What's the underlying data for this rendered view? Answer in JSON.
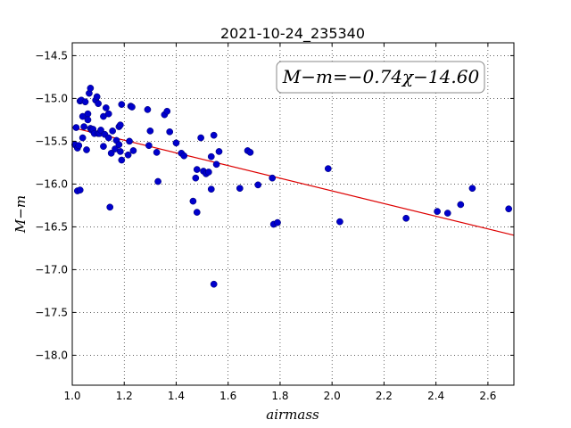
{
  "chart_data": {
    "type": "scatter",
    "title": "2021-10-24_235340",
    "xlabel": "airmass",
    "ylabel": "M−m",
    "xlim": [
      1.0,
      2.7
    ],
    "ylim": [
      -18.35,
      -14.35
    ],
    "y_inverted": true,
    "grid": true,
    "grid_style": "dotted",
    "x_ticks": [
      1.0,
      1.2,
      1.4,
      1.6,
      1.8,
      2.0,
      2.2,
      2.4,
      2.6
    ],
    "x_tick_labels": [
      "1.0",
      "1.2",
      "1.4",
      "1.6",
      "1.8",
      "2.0",
      "2.2",
      "2.4",
      "2.6"
    ],
    "y_ticks": [
      -14.5,
      -15.0,
      -15.5,
      -16.0,
      -16.5,
      -17.0,
      -17.5,
      -18.0
    ],
    "y_tick_labels": [
      "−14.5",
      "−15.0",
      "−15.5",
      "−16.0",
      "−16.5",
      "−17.0",
      "−17.5",
      "−18.0"
    ],
    "annotation": "M−m=−0.74χ−14.60",
    "annotation_position": "top-right",
    "colors": {
      "points": "#0000cc",
      "fit_line": "#dd0000"
    },
    "fit": {
      "slope": -0.74,
      "intercept": -14.6,
      "x_range": [
        1.0,
        2.7
      ]
    },
    "series": [
      {
        "points": [
          [
            1.01,
            -15.54
          ],
          [
            1.015,
            -15.34
          ],
          [
            1.02,
            -15.58
          ],
          [
            1.025,
            -15.55
          ],
          [
            1.02,
            -16.08
          ],
          [
            1.03,
            -16.07
          ],
          [
            1.03,
            -15.03
          ],
          [
            1.035,
            -15.02
          ],
          [
            1.04,
            -15.21
          ],
          [
            1.04,
            -15.46
          ],
          [
            1.045,
            -15.33
          ],
          [
            1.05,
            -15.04
          ],
          [
            1.055,
            -15.6
          ],
          [
            1.06,
            -15.18
          ],
          [
            1.06,
            -15.25
          ],
          [
            1.065,
            -14.94
          ],
          [
            1.07,
            -14.88
          ],
          [
            1.07,
            -15.35
          ],
          [
            1.075,
            -15.37
          ],
          [
            1.08,
            -15.36
          ],
          [
            1.085,
            -15.41
          ],
          [
            1.09,
            -15.02
          ],
          [
            1.095,
            -14.98
          ],
          [
            1.1,
            -15.06
          ],
          [
            1.1,
            -15.41
          ],
          [
            1.105,
            -15.41
          ],
          [
            1.11,
            -15.37
          ],
          [
            1.12,
            -15.21
          ],
          [
            1.12,
            -15.56
          ],
          [
            1.125,
            -15.42
          ],
          [
            1.13,
            -15.11
          ],
          [
            1.14,
            -15.18
          ],
          [
            1.14,
            -15.46
          ],
          [
            1.145,
            -16.27
          ],
          [
            1.15,
            -15.64
          ],
          [
            1.155,
            -15.38
          ],
          [
            1.165,
            -15.59
          ],
          [
            1.17,
            -15.49
          ],
          [
            1.18,
            -15.33
          ],
          [
            1.18,
            -15.54
          ],
          [
            1.185,
            -15.31
          ],
          [
            1.185,
            -15.62
          ],
          [
            1.19,
            -15.07
          ],
          [
            1.19,
            -15.72
          ],
          [
            1.215,
            -15.66
          ],
          [
            1.22,
            -15.5
          ],
          [
            1.225,
            -15.09
          ],
          [
            1.23,
            -15.1
          ],
          [
            1.235,
            -15.61
          ],
          [
            1.29,
            -15.13
          ],
          [
            1.295,
            -15.55
          ],
          [
            1.3,
            -15.38
          ],
          [
            1.325,
            -15.63
          ],
          [
            1.33,
            -15.97
          ],
          [
            1.355,
            -15.19
          ],
          [
            1.365,
            -15.15
          ],
          [
            1.375,
            -15.39
          ],
          [
            1.4,
            -15.52
          ],
          [
            1.42,
            -15.64
          ],
          [
            1.43,
            -15.67
          ],
          [
            1.465,
            -16.2
          ],
          [
            1.475,
            -15.93
          ],
          [
            1.48,
            -16.33
          ],
          [
            1.48,
            -15.83
          ],
          [
            1.495,
            -15.46
          ],
          [
            1.505,
            -15.85
          ],
          [
            1.515,
            -15.88
          ],
          [
            1.525,
            -15.86
          ],
          [
            1.535,
            -16.06
          ],
          [
            1.535,
            -15.68
          ],
          [
            1.545,
            -15.43
          ],
          [
            1.555,
            -15.77
          ],
          [
            1.565,
            -15.62
          ],
          [
            1.545,
            -17.17
          ],
          [
            1.645,
            -16.05
          ],
          [
            1.675,
            -15.61
          ],
          [
            1.685,
            -15.63
          ],
          [
            1.715,
            -16.01
          ],
          [
            1.77,
            -15.93
          ],
          [
            1.775,
            -16.47
          ],
          [
            1.79,
            -16.45
          ],
          [
            1.985,
            -15.82
          ],
          [
            2.03,
            -16.44
          ],
          [
            2.285,
            -16.4
          ],
          [
            2.405,
            -16.32
          ],
          [
            2.445,
            -16.34
          ],
          [
            2.495,
            -16.24
          ],
          [
            2.54,
            -16.05
          ],
          [
            2.68,
            -16.29
          ]
        ]
      }
    ]
  }
}
